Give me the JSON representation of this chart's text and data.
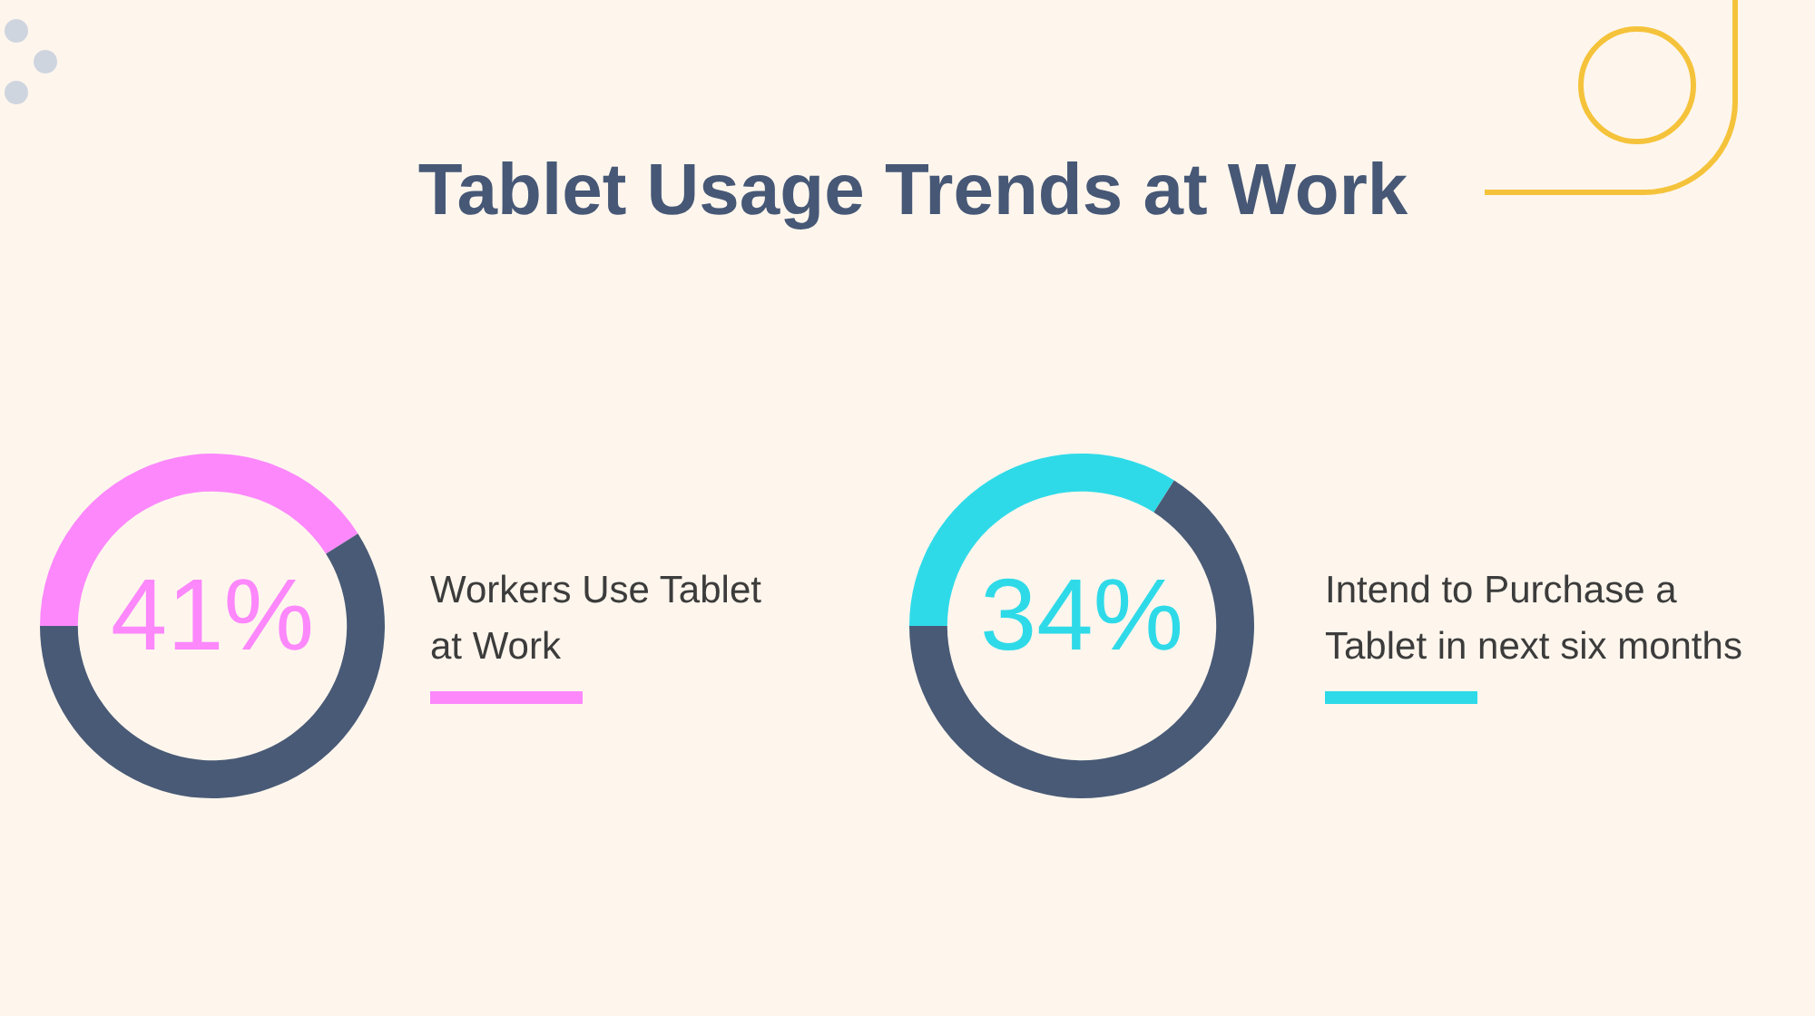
{
  "chart_data": [
    {
      "type": "other",
      "title": "Tablet Usage Trends at Work"
    },
    {
      "type": "donut",
      "title": "Workers Use Tablet at Work",
      "categories": [
        null,
        null
      ],
      "values": [
        41,
        59
      ],
      "colors": [
        "#fc88fc",
        "#495a76"
      ],
      "value_labels": [
        "41%",
        null
      ]
    },
    {
      "type": "donut",
      "title": "Intend to Purchase a Tablet in next six months",
      "categories": [
        null,
        null
      ],
      "values": [
        34,
        66
      ],
      "colors": [
        "#2fdae8",
        "#495a76"
      ],
      "value_labels": [
        "34%",
        null
      ]
    }
  ]
}
